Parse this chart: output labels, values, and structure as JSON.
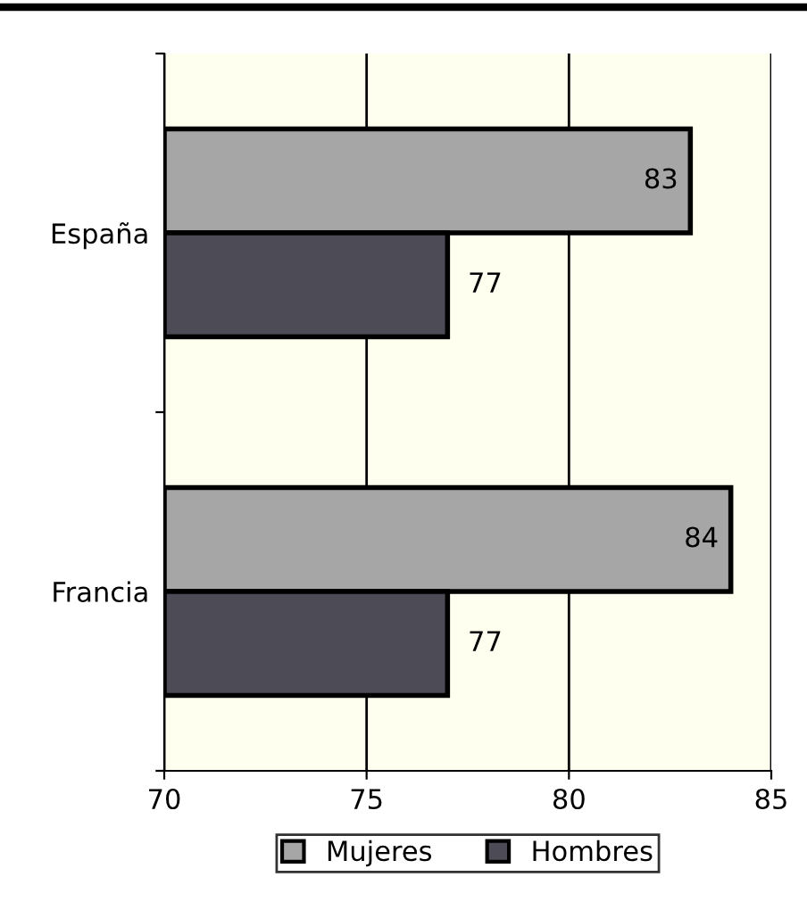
{
  "chart_data": {
    "type": "bar",
    "orientation": "horizontal",
    "categories": [
      "España",
      "Francia"
    ],
    "series": [
      {
        "name": "Mujeres",
        "color": "#a6a6a6",
        "values": [
          83,
          84
        ]
      },
      {
        "name": "Hombres",
        "color": "#4d4b55",
        "values": [
          77,
          77
        ]
      }
    ],
    "xlim": [
      70,
      85
    ],
    "xticks": [
      70,
      75,
      80,
      85
    ],
    "grid": "x",
    "legend": "bottom",
    "data_labels": true
  }
}
